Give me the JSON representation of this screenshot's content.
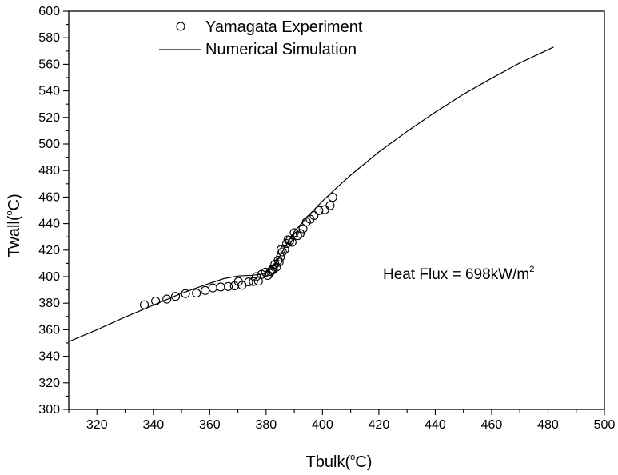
{
  "chart_data": {
    "type": "scatter",
    "title": "",
    "xlabel": {
      "main": "Tbulk(",
      "sup": "o",
      "unit": "C)"
    },
    "ylabel": {
      "main": "Twall(",
      "sup": "o",
      "unit": "C)"
    },
    "xlim": [
      310,
      500
    ],
    "ylim": [
      300,
      600
    ],
    "xticks": [
      320,
      340,
      360,
      380,
      400,
      420,
      440,
      460,
      480,
      500
    ],
    "yticks": [
      300,
      320,
      340,
      360,
      380,
      400,
      420,
      440,
      460,
      480,
      500,
      520,
      540,
      560,
      580,
      600
    ],
    "grid": false,
    "legend_position": "top-left",
    "series": [
      {
        "name": "Yamagata Experiment",
        "type": "scatter",
        "marker": "open-circle",
        "x": [
          336.8,
          340.8,
          344.8,
          347.9,
          351.4,
          355.3,
          358.4,
          361.1,
          363.9,
          366.6,
          368.8,
          370.2,
          371.5,
          373.8,
          375.5,
          376.5,
          377.3,
          378.4,
          379.8,
          380.6,
          381.2,
          381.6,
          382.0,
          382.3,
          382.6,
          383.1,
          383.7,
          384.3,
          384.6,
          385.1,
          385.3,
          385.8,
          386.6,
          387.3,
          387.8,
          388.4,
          389.2,
          390.0,
          391.2,
          392.1,
          393.1,
          394.3,
          395.6,
          397.0,
          398.7,
          400.8,
          402.7,
          403.6
        ],
        "y": [
          378.8,
          381.6,
          383.1,
          385.1,
          387.2,
          387.6,
          389.6,
          391.5,
          392.2,
          392.6,
          393.0,
          396.3,
          393.5,
          396.0,
          396.3,
          400.0,
          396.6,
          401.7,
          403.4,
          400.9,
          402.6,
          403.8,
          404.5,
          405.8,
          405.3,
          409.4,
          407.2,
          412.3,
          410.8,
          414.8,
          420.4,
          418.7,
          420.5,
          425.0,
          427.8,
          427.3,
          425.9,
          433.2,
          430.9,
          432.6,
          436.1,
          441.2,
          443.3,
          446.1,
          449.8,
          450.5,
          453.6,
          459.8
        ]
      },
      {
        "name": "Numerical Simulation",
        "type": "line",
        "x": [
          310,
          320,
          330,
          340,
          350,
          360,
          365,
          370,
          375,
          378,
          380,
          382,
          384,
          386,
          388,
          390,
          395,
          400,
          405,
          410,
          420,
          430,
          440,
          450,
          460,
          470,
          482
        ],
        "y": [
          351.0,
          360.0,
          369.5,
          378.5,
          387.5,
          395.0,
          398.5,
          400.5,
          401.0,
          401.7,
          403.0,
          406.5,
          412.0,
          419.5,
          427.0,
          434.0,
          446.0,
          457.0,
          467.0,
          476.5,
          494.0,
          509.5,
          524.0,
          537.5,
          549.5,
          561.0,
          573.0
        ]
      }
    ],
    "annotation": {
      "text": "Heat Flux = 698kW/m",
      "sup": "2"
    }
  }
}
